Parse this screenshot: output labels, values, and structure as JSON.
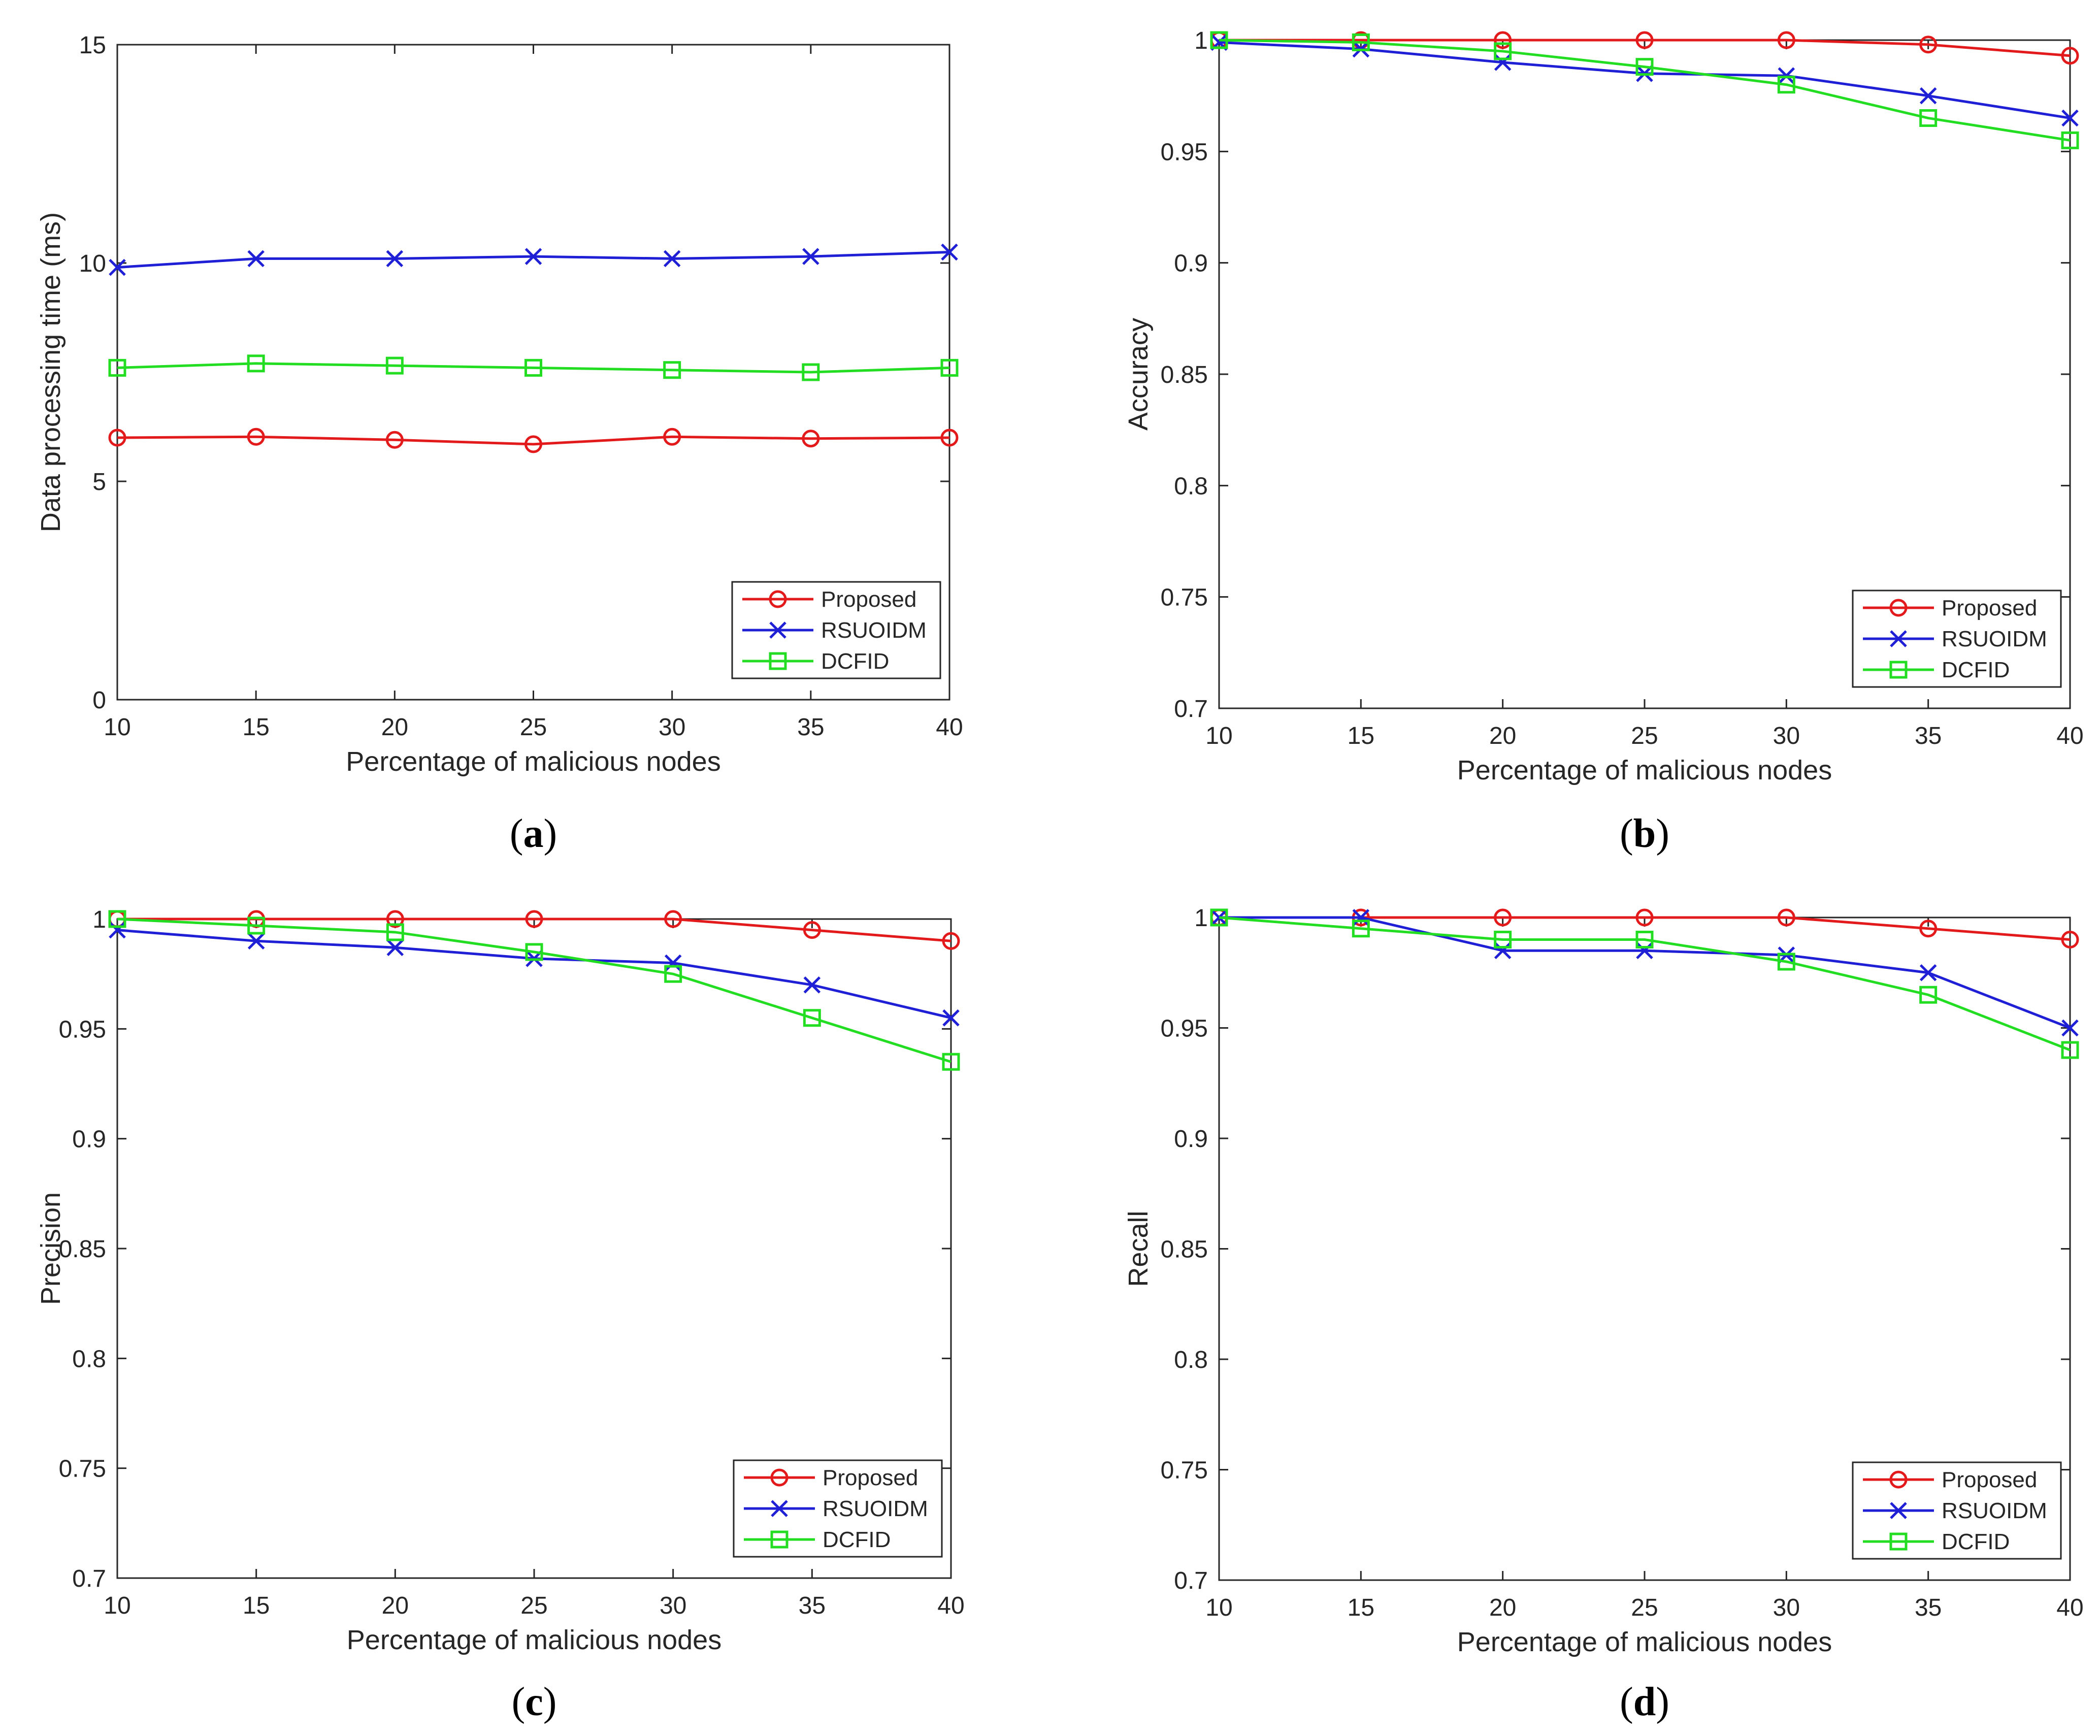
{
  "chart_data": [
    {
      "panel": "a",
      "caption": {
        "open": "(",
        "letter": "a",
        "close": ")"
      },
      "type": "line",
      "xlabel": "Percentage of malicious nodes",
      "ylabel": "Data processing time (ms)",
      "x": [
        10,
        15,
        20,
        25,
        30,
        35,
        40
      ],
      "xlim": [
        10,
        40
      ],
      "ylim": [
        0,
        15
      ],
      "xticks": [
        "10",
        "15",
        "20",
        "25",
        "30",
        "35",
        "40"
      ],
      "yticks": [
        {
          "value": 0,
          "label": "0"
        },
        {
          "value": 5,
          "label": "5"
        },
        {
          "value": 10,
          "label": "10"
        },
        {
          "value": 15,
          "label": "15"
        }
      ],
      "legend_position": "bottom-right",
      "series": [
        {
          "name": "Proposed",
          "color": "#e31a1c",
          "marker": "circle",
          "values": [
            6.0,
            6.02,
            5.95,
            5.85,
            6.02,
            5.98,
            6.0
          ]
        },
        {
          "name": "RSUOIDM",
          "color": "#1f1fd6",
          "marker": "x",
          "values": [
            9.9,
            10.1,
            10.1,
            10.15,
            10.1,
            10.15,
            10.25
          ]
        },
        {
          "name": "DCFID",
          "color": "#22dd22",
          "marker": "square",
          "values": [
            7.6,
            7.7,
            7.65,
            7.6,
            7.55,
            7.5,
            7.6
          ]
        }
      ]
    },
    {
      "panel": "b",
      "caption": {
        "open": "(",
        "letter": "b",
        "close": ")"
      },
      "type": "line",
      "xlabel": "Percentage of malicious nodes",
      "ylabel": "Accuracy",
      "x": [
        10,
        15,
        20,
        25,
        30,
        35,
        40
      ],
      "xlim": [
        10,
        40
      ],
      "ylim": [
        0.7,
        1.0
      ],
      "xticks": [
        "10",
        "15",
        "20",
        "25",
        "30",
        "35",
        "40"
      ],
      "yticks": [
        {
          "value": 0.7,
          "label": "0.7"
        },
        {
          "value": 0.75,
          "label": "0.75"
        },
        {
          "value": 0.8,
          "label": "0.8"
        },
        {
          "value": 0.85,
          "label": "0.85"
        },
        {
          "value": 0.9,
          "label": "0.9"
        },
        {
          "value": 0.95,
          "label": "0.95"
        },
        {
          "value": 1.0,
          "label": "1"
        }
      ],
      "legend_position": "bottom-right",
      "series": [
        {
          "name": "Proposed",
          "color": "#e31a1c",
          "marker": "circle",
          "values": [
            1.0,
            1.0,
            1.0,
            1.0,
            1.0,
            0.998,
            0.993
          ]
        },
        {
          "name": "RSUOIDM",
          "color": "#1f1fd6",
          "marker": "x",
          "values": [
            0.999,
            0.996,
            0.99,
            0.985,
            0.984,
            0.975,
            0.965
          ]
        },
        {
          "name": "DCFID",
          "color": "#22dd22",
          "marker": "square",
          "values": [
            1.0,
            0.999,
            0.995,
            0.988,
            0.98,
            0.965,
            0.955
          ]
        }
      ]
    },
    {
      "panel": "c",
      "caption": {
        "open": "(",
        "letter": "c",
        "close": ")"
      },
      "type": "line",
      "xlabel": "Percentage of malicious nodes",
      "ylabel": "Precision",
      "x": [
        10,
        15,
        20,
        25,
        30,
        35,
        40
      ],
      "xlim": [
        10,
        40
      ],
      "ylim": [
        0.7,
        1.0
      ],
      "xticks": [
        "10",
        "15",
        "20",
        "25",
        "30",
        "35",
        "40"
      ],
      "yticks": [
        {
          "value": 0.7,
          "label": "0.7"
        },
        {
          "value": 0.75,
          "label": "0.75"
        },
        {
          "value": 0.8,
          "label": "0.8"
        },
        {
          "value": 0.85,
          "label": "0.85"
        },
        {
          "value": 0.9,
          "label": "0.9"
        },
        {
          "value": 0.95,
          "label": "0.95"
        },
        {
          "value": 1.0,
          "label": "1"
        }
      ],
      "legend_position": "bottom-right",
      "series": [
        {
          "name": "Proposed",
          "color": "#e31a1c",
          "marker": "circle",
          "values": [
            1.0,
            1.0,
            1.0,
            1.0,
            1.0,
            0.995,
            0.99
          ]
        },
        {
          "name": "RSUOIDM",
          "color": "#1f1fd6",
          "marker": "x",
          "values": [
            0.995,
            0.99,
            0.987,
            0.982,
            0.98,
            0.97,
            0.955
          ]
        },
        {
          "name": "DCFID",
          "color": "#22dd22",
          "marker": "square",
          "values": [
            1.0,
            0.997,
            0.994,
            0.985,
            0.975,
            0.955,
            0.935
          ]
        }
      ]
    },
    {
      "panel": "d",
      "caption": {
        "open": "(",
        "letter": "d",
        "close": ")"
      },
      "type": "line",
      "xlabel": "Percentage of malicious nodes",
      "ylabel": "Recall",
      "x": [
        10,
        15,
        20,
        25,
        30,
        35,
        40
      ],
      "xlim": [
        10,
        40
      ],
      "ylim": [
        0.7,
        1.0
      ],
      "xticks": [
        "10",
        "15",
        "20",
        "25",
        "30",
        "35",
        "40"
      ],
      "yticks": [
        {
          "value": 0.7,
          "label": "0.7"
        },
        {
          "value": 0.75,
          "label": "0.75"
        },
        {
          "value": 0.8,
          "label": "0.8"
        },
        {
          "value": 0.85,
          "label": "0.85"
        },
        {
          "value": 0.9,
          "label": "0.9"
        },
        {
          "value": 0.95,
          "label": "0.95"
        },
        {
          "value": 1.0,
          "label": "1"
        }
      ],
      "legend_position": "bottom-right",
      "series": [
        {
          "name": "Proposed",
          "color": "#e31a1c",
          "marker": "circle",
          "values": [
            1.0,
            1.0,
            1.0,
            1.0,
            1.0,
            0.995,
            0.99
          ]
        },
        {
          "name": "RSUOIDM",
          "color": "#1f1fd6",
          "marker": "x",
          "values": [
            1.0,
            1.0,
            0.985,
            0.985,
            0.983,
            0.975,
            0.95
          ]
        },
        {
          "name": "DCFID",
          "color": "#22dd22",
          "marker": "square",
          "values": [
            1.0,
            0.995,
            0.99,
            0.99,
            0.98,
            0.965,
            0.94
          ]
        }
      ]
    }
  ]
}
